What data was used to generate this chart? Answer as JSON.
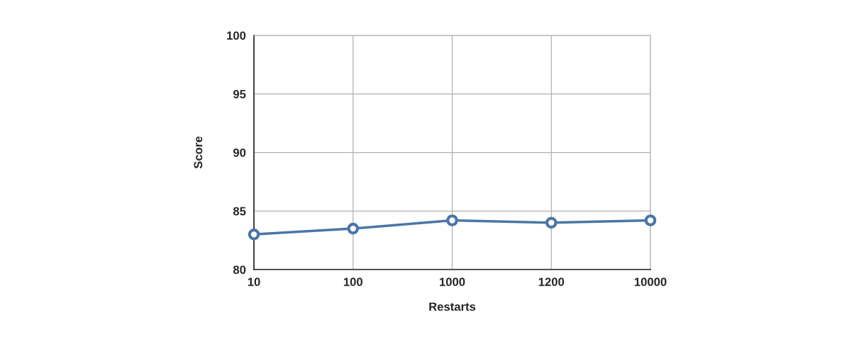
{
  "chart_data": {
    "type": "line",
    "xlabel": "Restarts",
    "ylabel": "Score",
    "categories": [
      "10",
      "100",
      "1000",
      "1200",
      "10000"
    ],
    "series": [
      {
        "color": "#4a76a8",
        "values": [
          83.0,
          83.5,
          84.2,
          84.0,
          84.2
        ]
      }
    ],
    "ylim": [
      80,
      100
    ],
    "yticks": [
      80,
      85,
      90,
      95,
      100
    ],
    "grid": true,
    "marker": "circle",
    "line_style": "solid"
  }
}
